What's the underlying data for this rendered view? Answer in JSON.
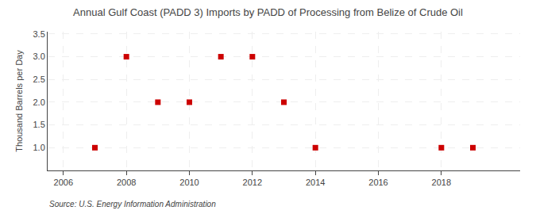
{
  "chart_data": {
    "type": "scatter",
    "title": "Annual Gulf Coast (PADD 3) Imports by PADD of Processing from Belize of Crude Oil",
    "ylabel": "Thousand Barrels per Day",
    "source": "Source: U.S. Energy Information Administration",
    "x": [
      2007,
      2008,
      2009,
      2010,
      2011,
      2012,
      2013,
      2014,
      2018,
      2019
    ],
    "values": [
      1.0,
      3.0,
      2.0,
      2.0,
      3.0,
      3.0,
      2.0,
      1.0,
      1.0,
      1.0
    ],
    "color": "#cc0000",
    "marker": "square",
    "xlim": [
      2005.5,
      2020.5
    ],
    "ylim": [
      0.5,
      3.55
    ],
    "xticks": [
      2006,
      2008,
      2010,
      2012,
      2014,
      2016,
      2018
    ],
    "yticks": [
      {
        "value": 1.0,
        "label": "1.0"
      },
      1.5,
      {
        "value": 2.0,
        "label": "2.0"
      },
      2.5,
      {
        "value": 3.0,
        "label": "3.0"
      },
      3.5
    ],
    "grid": true
  }
}
